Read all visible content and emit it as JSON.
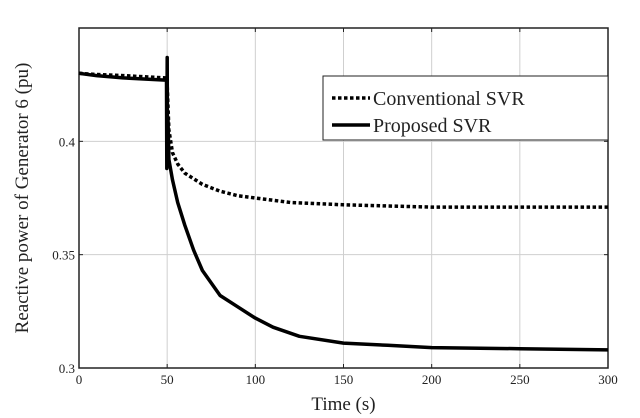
{
  "chart_data": {
    "type": "line",
    "title": "",
    "xlabel": "Time (s)",
    "ylabel": "Reactive power of Generator 6 (pu)",
    "xlim": [
      0,
      300
    ],
    "ylim": [
      0.3,
      0.45
    ],
    "xticks": [
      0,
      50,
      100,
      150,
      200,
      250,
      300
    ],
    "yticks": [
      0.3,
      0.35,
      0.4
    ],
    "ytick_labels": [
      "0.3",
      "0.35",
      "0.4"
    ],
    "grid": true,
    "legend_placement": "top-right",
    "series": [
      {
        "name": "Conventional SVR",
        "style": "dotted",
        "color": "#000000",
        "x": [
          0,
          10,
          25,
          49,
          49.5,
          50,
          51,
          53,
          56,
          60,
          70,
          80,
          90,
          100,
          120,
          150,
          200,
          250,
          300
        ],
        "y": [
          0.43,
          0.4295,
          0.429,
          0.428,
          0.428,
          0.425,
          0.405,
          0.395,
          0.39,
          0.386,
          0.381,
          0.378,
          0.376,
          0.375,
          0.373,
          0.372,
          0.371,
          0.371,
          0.371
        ]
      },
      {
        "name": "Proposed SVR",
        "style": "solid",
        "color": "#000000",
        "x": [
          0,
          10,
          25,
          49,
          49.6,
          49.8,
          50,
          50.2,
          50.5,
          51,
          53,
          56,
          60,
          65,
          70,
          80,
          90,
          100,
          110,
          125,
          150,
          175,
          200,
          250,
          300
        ],
        "y": [
          0.43,
          0.429,
          0.428,
          0.427,
          0.427,
          0.388,
          0.437,
          0.395,
          0.41,
          0.392,
          0.383,
          0.373,
          0.363,
          0.352,
          0.343,
          0.332,
          0.327,
          0.322,
          0.318,
          0.314,
          0.311,
          0.31,
          0.309,
          0.3085,
          0.308
        ]
      }
    ]
  }
}
